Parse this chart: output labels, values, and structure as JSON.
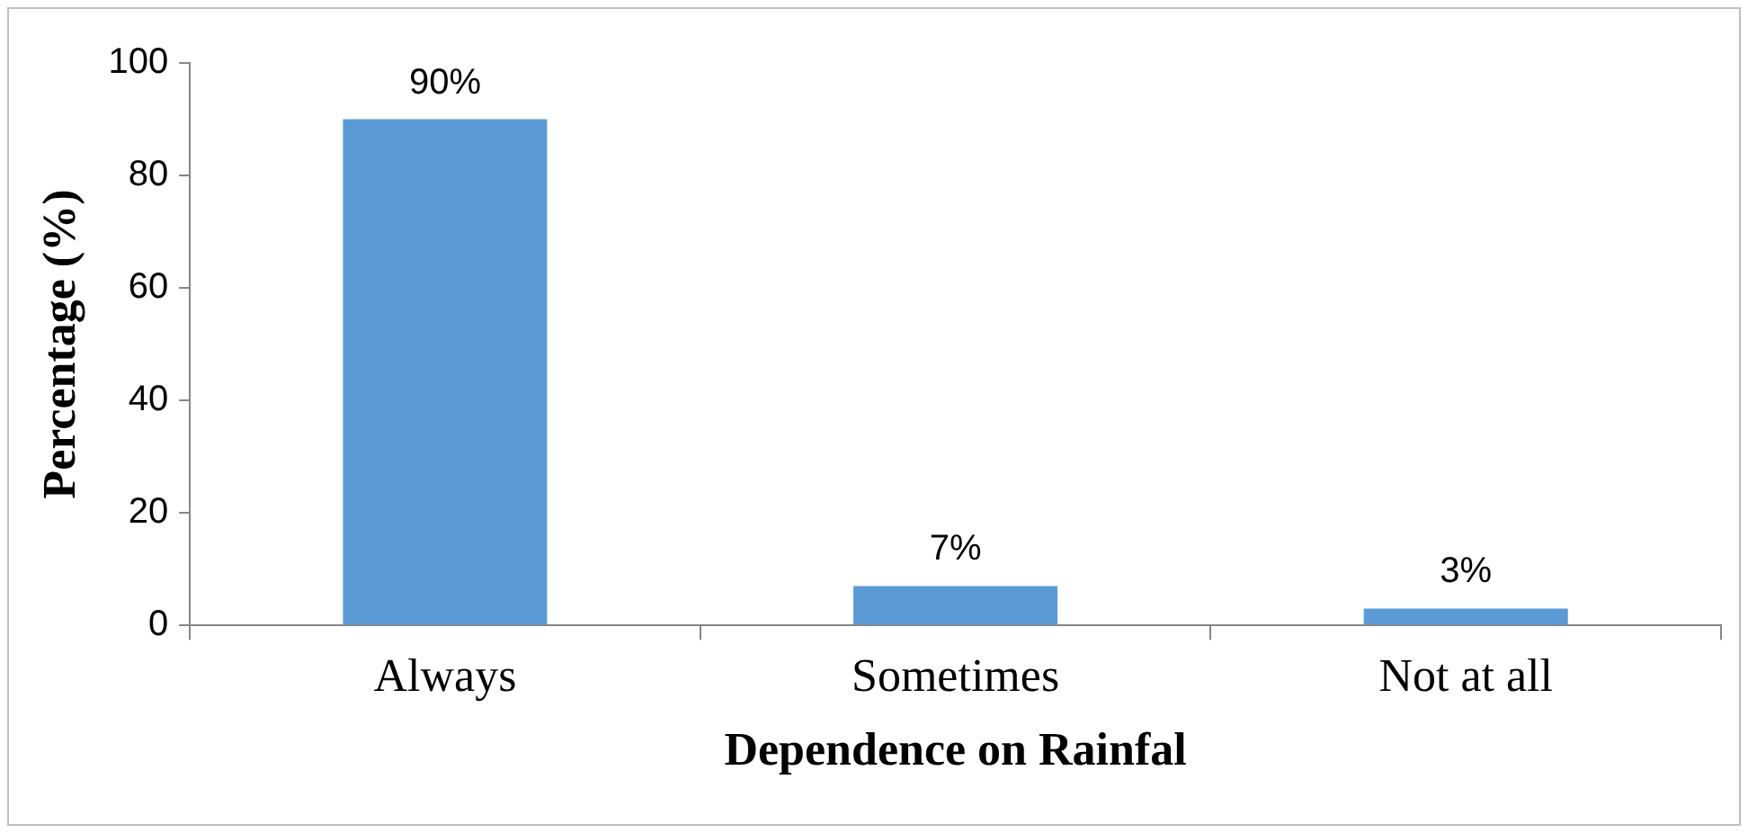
{
  "chart_data": {
    "type": "bar",
    "xlabel": "Dependence on Rainfal",
    "ylabel": "Percentage (%)",
    "categories": [
      "Always",
      "Sometimes",
      "Not at all"
    ],
    "values": [
      90,
      7,
      3
    ],
    "value_labels": [
      "90%",
      "7%",
      "3%"
    ],
    "color": "#5b9bd5",
    "ylim": [
      0,
      100
    ],
    "yticks": [
      0,
      20,
      40,
      60,
      80,
      100
    ],
    "grid": false,
    "legend": false
  }
}
